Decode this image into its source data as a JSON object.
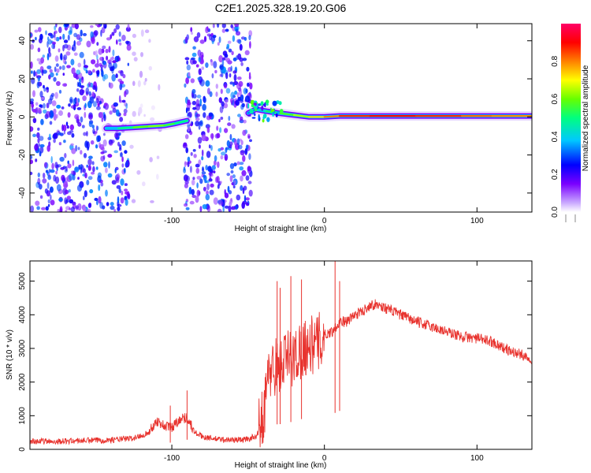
{
  "title": "C2E1.2025.328.19.20.G06",
  "chart_data": [
    {
      "type": "heatmap",
      "name": "spectrogram",
      "xlabel": "Height of straight line (km)",
      "ylabel": "Frequency (Hz)",
      "xlim": [
        -193,
        136
      ],
      "ylim": [
        -50,
        49
      ],
      "xticks": [
        -100,
        0,
        100
      ],
      "xtick_labels": [
        "-100",
        "0",
        "100"
      ],
      "yticks": [
        -40,
        -20,
        0,
        20,
        40
      ],
      "ytick_labels": [
        "-40",
        "-20",
        "0",
        "20",
        "40"
      ],
      "colorbar": {
        "label": "Normalized spectral amplitude",
        "range": [
          0,
          1
        ],
        "ticks": [
          0,
          0.2,
          0.4,
          0.6,
          0.8
        ],
        "tick_labels": [
          "0.0",
          "0.2",
          "0.4",
          "0.6",
          "0.8"
        ],
        "colors": [
          "#ffffff",
          "#c9a8ff",
          "#7a00ff",
          "#0000ff",
          "#00c8ff",
          "#00ff7f",
          "#66ff00",
          "#ffff00",
          "#ff8000",
          "#ff0000",
          "#ff0066"
        ]
      },
      "noise_regions": [
        {
          "x": [
            -193,
            -128
          ],
          "amplitude": 0.3
        },
        {
          "x": [
            -128,
            -107
          ],
          "amplitude": 0.06
        },
        {
          "x": [
            -92,
            -48
          ],
          "amplitude": 0.3
        }
      ],
      "signal_track": [
        {
          "x": -143,
          "y": -6,
          "amplitude": 0.3
        },
        {
          "x": -135,
          "y": -6,
          "amplitude": 0.45
        },
        {
          "x": -125,
          "y": -5.5,
          "amplitude": 0.55
        },
        {
          "x": -115,
          "y": -5,
          "amplitude": 0.65
        },
        {
          "x": -105,
          "y": -4.5,
          "amplitude": 0.6
        },
        {
          "x": -98,
          "y": -3.5,
          "amplitude": 0.55
        },
        {
          "x": -90,
          "y": -2,
          "amplitude": 0.45
        },
        {
          "x": -50,
          "y": 2,
          "amplitude": 0.3
        },
        {
          "x": -45,
          "y": 4,
          "amplitude": 0.35
        },
        {
          "x": -38,
          "y": 3,
          "amplitude": 0.5
        },
        {
          "x": -30,
          "y": 2,
          "amplitude": 0.55
        },
        {
          "x": -20,
          "y": 1,
          "amplitude": 0.6
        },
        {
          "x": -10,
          "y": 0,
          "amplitude": 0.7
        },
        {
          "x": 0,
          "y": 0,
          "amplitude": 0.75
        },
        {
          "x": 10,
          "y": 0.5,
          "amplitude": 0.85
        },
        {
          "x": 30,
          "y": 0.5,
          "amplitude": 0.9
        },
        {
          "x": 60,
          "y": 0.5,
          "amplitude": 0.9
        },
        {
          "x": 90,
          "y": 0.5,
          "amplitude": 0.85
        },
        {
          "x": 110,
          "y": 0.5,
          "amplitude": 0.8
        },
        {
          "x": 136,
          "y": 0.5,
          "amplitude": 0.8
        }
      ]
    },
    {
      "type": "line",
      "name": "snr",
      "xlabel": "Height of straight line (km)",
      "ylabel": "SNR (10 * v/v)",
      "xlim": [
        -193,
        136
      ],
      "ylim": [
        0,
        5600
      ],
      "xticks": [
        -100,
        0,
        100
      ],
      "xtick_labels": [
        "-100",
        "0",
        "100"
      ],
      "yticks": [
        0,
        1000,
        2000,
        3000,
        4000,
        5000
      ],
      "ytick_labels": [
        "0",
        "1000",
        "2000",
        "3000",
        "4000",
        "5000"
      ],
      "series": [
        {
          "name": "SNR",
          "color": "#e8332e",
          "x": [
            -193,
            -180,
            -160,
            -140,
            -125,
            -115,
            -110,
            -105,
            -100,
            -95,
            -90,
            -85,
            -80,
            -70,
            -60,
            -50,
            -44,
            -40,
            -36,
            -32,
            -30,
            -25,
            -20,
            -15,
            -10,
            -5,
            0,
            5,
            10,
            15,
            20,
            25,
            30,
            35,
            40,
            50,
            60,
            70,
            80,
            90,
            100,
            110,
            120,
            130,
            136
          ],
          "y": [
            250,
            230,
            260,
            280,
            330,
            500,
            850,
            700,
            650,
            900,
            950,
            500,
            380,
            300,
            280,
            300,
            420,
            1100,
            2300,
            2500,
            2450,
            2700,
            2700,
            3000,
            3100,
            3100,
            3400,
            3500,
            3800,
            3800,
            4000,
            4100,
            4300,
            4300,
            4200,
            4000,
            3800,
            3650,
            3500,
            3350,
            3300,
            3200,
            2950,
            2800,
            2700
          ]
        }
      ],
      "spikes": [
        {
          "x": -31,
          "y": 5000
        },
        {
          "x": -29,
          "y": 4800
        },
        {
          "x": -22,
          "y": 5150
        },
        {
          "x": -15,
          "y": 5050
        },
        {
          "x": 7,
          "y": 5600
        },
        {
          "x": 10,
          "y": 5000
        },
        {
          "x": -101,
          "y": 1300
        },
        {
          "x": -90,
          "y": 1750
        }
      ]
    }
  ]
}
